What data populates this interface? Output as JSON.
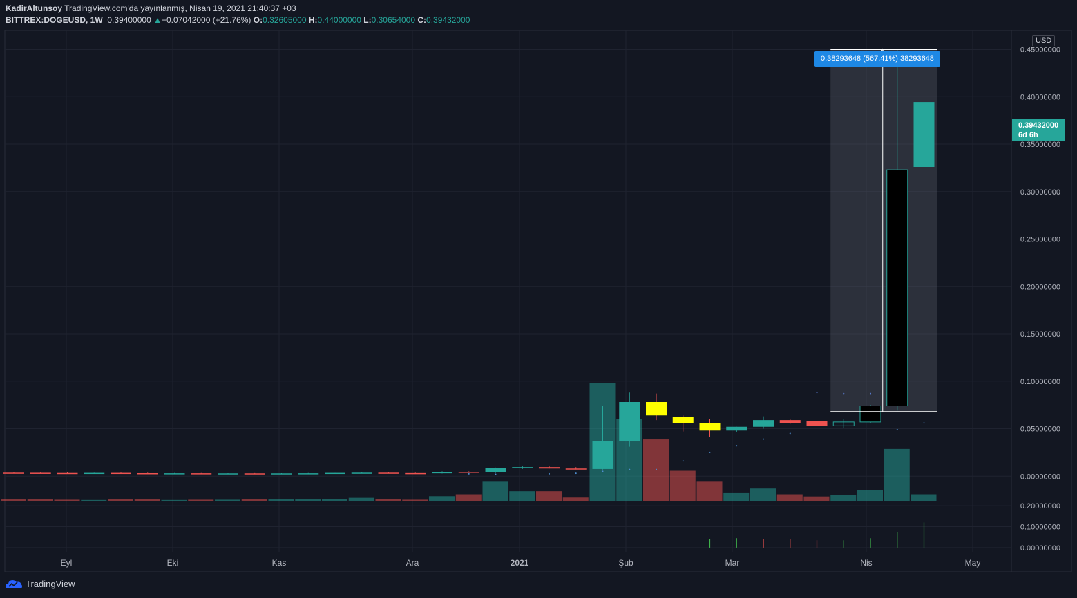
{
  "header": {
    "author": "KadirAltunsoy",
    "published": "TradingView.com'da yayınlanmış, Nisan 19, 2021 21:40:37 +03",
    "symbol": "BITTREX:DOGEUSD, 1W",
    "last": "0.39400000",
    "change": "+0.07042000 (+21.76%)",
    "o_label": "O:",
    "o": "0.32605000",
    "h_label": "H:",
    "h": "0.44000000",
    "l_label": "L:",
    "l": "0.30654000",
    "c_label": "C:",
    "c": "0.39432000"
  },
  "currency_button": "USD",
  "current_price_tag": {
    "price": "0.39432000",
    "countdown": "6d 6h"
  },
  "measure_label": "0.38293648 (567.41%) 38293648",
  "footer": {
    "brand": "TradingView"
  },
  "colors": {
    "up": "#26a69a",
    "down": "#ef5350",
    "bg": "#131722",
    "highlight_body": "#ffff00",
    "black_body": "#000000",
    "measure": "#1e88e5"
  },
  "chart_data": {
    "type": "candlestick",
    "symbol": "BITTREX:DOGEUSD",
    "interval": "1W",
    "x_labels": [
      "Eyl",
      "Eki",
      "Kas",
      "Ara",
      "2021",
      "Şub",
      "Mar",
      "Nis",
      "May"
    ],
    "y_ticks": [
      "0.45000000",
      "0.40000000",
      "0.35000000",
      "0.30000000",
      "0.25000000",
      "0.20000000",
      "0.15000000",
      "0.10000000",
      "0.05000000",
      "0.00000000"
    ],
    "ylim": [
      -0.026,
      0.47
    ],
    "candles": [
      {
        "o": 0.0036,
        "h": 0.004,
        "l": 0.003,
        "c": 0.0033,
        "style": "down",
        "vol": 0.05
      },
      {
        "o": 0.0035,
        "h": 0.0042,
        "l": 0.003,
        "c": 0.0032,
        "style": "down",
        "vol": 0.05
      },
      {
        "o": 0.0033,
        "h": 0.004,
        "l": 0.003,
        "c": 0.0031,
        "style": "down",
        "vol": 0.04
      },
      {
        "o": 0.0031,
        "h": 0.0036,
        "l": 0.0028,
        "c": 0.0034,
        "style": "up",
        "vol": 0.03
      },
      {
        "o": 0.0034,
        "h": 0.0037,
        "l": 0.003,
        "c": 0.0031,
        "style": "down",
        "vol": 0.05
      },
      {
        "o": 0.0031,
        "h": 0.0036,
        "l": 0.0028,
        "c": 0.0029,
        "style": "down",
        "vol": 0.05
      },
      {
        "o": 0.0029,
        "h": 0.0033,
        "l": 0.0027,
        "c": 0.003,
        "style": "up",
        "vol": 0.03
      },
      {
        "o": 0.003,
        "h": 0.0033,
        "l": 0.0027,
        "c": 0.0028,
        "style": "down",
        "vol": 0.04
      },
      {
        "o": 0.0028,
        "h": 0.0031,
        "l": 0.0025,
        "c": 0.0029,
        "style": "up",
        "vol": 0.04
      },
      {
        "o": 0.0029,
        "h": 0.0032,
        "l": 0.0026,
        "c": 0.0028,
        "style": "down",
        "vol": 0.05
      },
      {
        "o": 0.0028,
        "h": 0.0031,
        "l": 0.0025,
        "c": 0.0029,
        "style": "up",
        "vol": 0.05
      },
      {
        "o": 0.0029,
        "h": 0.0033,
        "l": 0.0027,
        "c": 0.003,
        "style": "up",
        "vol": 0.05
      },
      {
        "o": 0.003,
        "h": 0.0035,
        "l": 0.0028,
        "c": 0.0034,
        "style": "up",
        "vol": 0.07
      },
      {
        "o": 0.0034,
        "h": 0.004,
        "l": 0.003,
        "c": 0.0036,
        "style": "up",
        "vol": 0.11
      },
      {
        "o": 0.0036,
        "h": 0.004,
        "l": 0.0031,
        "c": 0.0032,
        "style": "down",
        "vol": 0.06
      },
      {
        "o": 0.0032,
        "h": 0.0036,
        "l": 0.0028,
        "c": 0.003,
        "style": "down",
        "vol": 0.04
      },
      {
        "o": 0.003,
        "h": 0.005,
        "l": 0.0028,
        "c": 0.0045,
        "style": "up",
        "vol": 0.17
      },
      {
        "o": 0.0045,
        "h": 0.005,
        "l": 0.0038,
        "c": 0.0039,
        "style": "down",
        "vol": 0.24
      },
      {
        "o": 0.0039,
        "h": 0.009,
        "l": 0.0035,
        "c": 0.0085,
        "style": "up",
        "vol": 0.7
      },
      {
        "o": 0.0085,
        "h": 0.011,
        "l": 0.0075,
        "c": 0.0095,
        "style": "up",
        "vol": 0.35
      },
      {
        "o": 0.0095,
        "h": 0.011,
        "l": 0.008,
        "c": 0.008,
        "style": "down",
        "vol": 0.35
      },
      {
        "o": 0.008,
        "h": 0.0095,
        "l": 0.007,
        "c": 0.0075,
        "style": "down",
        "vol": 0.12
      },
      {
        "o": 0.0075,
        "h": 0.074,
        "l": 0.007,
        "c": 0.037,
        "style": "up",
        "vol": 4.3
      },
      {
        "o": 0.037,
        "h": 0.088,
        "l": 0.031,
        "c": 0.078,
        "style": "up",
        "vol": 3.0
      },
      {
        "o": 0.078,
        "h": 0.087,
        "l": 0.059,
        "c": 0.064,
        "style": "highlight",
        "vol": 2.25
      },
      {
        "o": 0.062,
        "h": 0.064,
        "l": 0.047,
        "c": 0.056,
        "style": "highlight",
        "vol": 1.1
      },
      {
        "o": 0.056,
        "h": 0.06,
        "l": 0.041,
        "c": 0.048,
        "style": "highlight",
        "vol": 0.7
      },
      {
        "o": 0.048,
        "h": 0.052,
        "l": 0.046,
        "c": 0.052,
        "style": "up",
        "vol": 0.28
      },
      {
        "o": 0.052,
        "h": 0.063,
        "l": 0.05,
        "c": 0.059,
        "style": "up",
        "vol": 0.45
      },
      {
        "o": 0.059,
        "h": 0.06,
        "l": 0.055,
        "c": 0.056,
        "style": "down",
        "vol": 0.24
      },
      {
        "o": 0.058,
        "h": 0.059,
        "l": 0.05,
        "c": 0.053,
        "style": "down",
        "vol": 0.16
      },
      {
        "o": 0.053,
        "h": 0.06,
        "l": 0.051,
        "c": 0.057,
        "style": "outline",
        "vol": 0.22
      },
      {
        "o": 0.057,
        "h": 0.075,
        "l": 0.056,
        "c": 0.074,
        "style": "black",
        "vol": 0.38
      },
      {
        "o": 0.074,
        "h": 0.45,
        "l": 0.069,
        "c": 0.323,
        "style": "black",
        "vol": 1.9
      },
      {
        "o": 0.326,
        "h": 0.44,
        "l": 0.3065,
        "c": 0.3943,
        "style": "up",
        "vol": 0.24
      }
    ],
    "markers": [
      {
        "i": 17,
        "y": 0.0025
      },
      {
        "i": 18,
        "y": 0.002
      },
      {
        "i": 20,
        "y": 0.0025
      },
      {
        "i": 21,
        "y": 0.003
      },
      {
        "i": 22,
        "y": 0.005
      },
      {
        "i": 23,
        "y": 0.007
      },
      {
        "i": 24,
        "y": 0.007
      },
      {
        "i": 25,
        "y": 0.016
      },
      {
        "i": 26,
        "y": 0.025
      },
      {
        "i": 27,
        "y": 0.032
      },
      {
        "i": 28,
        "y": 0.039
      },
      {
        "i": 29,
        "y": 0.045
      },
      {
        "i": 30,
        "y": 0.088
      },
      {
        "i": 31,
        "y": 0.087
      },
      {
        "i": 32,
        "y": 0.087
      },
      {
        "i": 33,
        "y": 0.049
      },
      {
        "i": 34,
        "y": 0.056
      }
    ],
    "indicator": {
      "y_ticks": [
        "0.20000000",
        "0.10000000",
        "0.00000000"
      ],
      "ylim": [
        -0.02,
        0.22
      ],
      "bars": [
        {
          "i": 26,
          "v": 0.04,
          "color": "up"
        },
        {
          "i": 27,
          "v": 0.045,
          "color": "up"
        },
        {
          "i": 28,
          "v": 0.04,
          "color": "down"
        },
        {
          "i": 29,
          "v": 0.04,
          "color": "down"
        },
        {
          "i": 30,
          "v": 0.035,
          "color": "down"
        },
        {
          "i": 31,
          "v": 0.035,
          "color": "up"
        },
        {
          "i": 32,
          "v": 0.045,
          "color": "up"
        },
        {
          "i": 33,
          "v": 0.075,
          "color": "up"
        },
        {
          "i": 34,
          "v": 0.12,
          "color": "up"
        }
      ]
    },
    "measure": {
      "from_index": 31,
      "to_index": 34,
      "low": 0.068,
      "high": 0.45
    }
  }
}
